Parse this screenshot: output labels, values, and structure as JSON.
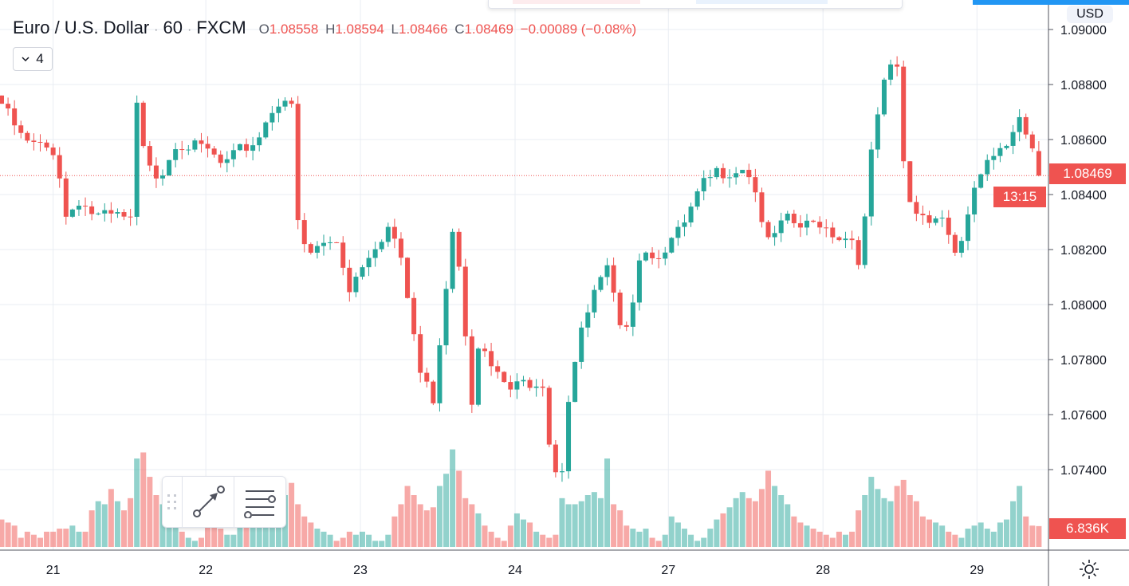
{
  "header": {
    "symbol": "Euro / U.S. Dollar",
    "interval": "60",
    "exchange": "FXCM",
    "separator": "·",
    "o_label": "O",
    "o": "1.08558",
    "h_label": "H",
    "h": "1.08594",
    "l_label": "L",
    "l": "1.08466",
    "c_label": "C",
    "c": "1.08469",
    "change": "−0.00089 (−0.08%)",
    "collapse_count": "4"
  },
  "price_axis": {
    "currency": "USD",
    "last_price": "1.08469",
    "countdown": "13:15",
    "volume_last": "6.836K"
  },
  "colors": {
    "up": "#26a69a",
    "down": "#ef5350",
    "grid": "#e9edf3"
  },
  "chart_data": {
    "type": "candlestick",
    "title": "Euro / U.S. Dollar · 60 · FXCM",
    "ylim": [
      1.0725,
      1.0905
    ],
    "y_ticks": [
      "1.07400",
      "1.07600",
      "1.07800",
      "1.08000",
      "1.08200",
      "1.08400",
      "1.08600",
      "1.08800",
      "1.09000"
    ],
    "x_ticks": [
      {
        "label": "21",
        "bar": 8
      },
      {
        "label": "22",
        "bar": 31.7
      },
      {
        "label": "23",
        "bar": 55.7
      },
      {
        "label": "24",
        "bar": 79.7
      },
      {
        "label": "27",
        "bar": 103.5
      },
      {
        "label": "28",
        "bar": 127.5
      },
      {
        "label": "29",
        "bar": 151.4
      }
    ],
    "bar_count": 162,
    "close_waypoints": [
      [
        0,
        1.0873
      ],
      [
        3.5,
        1.0859
      ],
      [
        8,
        1.0856
      ],
      [
        9,
        1.0847
      ],
      [
        10,
        1.0832
      ],
      [
        12,
        1.0838
      ],
      [
        14.6,
        1.0832
      ],
      [
        18.3,
        1.0832
      ],
      [
        20,
        1.083
      ],
      [
        21,
        1.0872
      ],
      [
        22,
        1.0856
      ],
      [
        24.5,
        1.0846
      ],
      [
        27,
        1.0859
      ],
      [
        32,
        1.0856
      ],
      [
        34.4,
        1.085
      ],
      [
        37,
        1.0856
      ],
      [
        39.4,
        1.0859
      ],
      [
        42,
        1.0871
      ],
      [
        43.7,
        1.0876
      ],
      [
        45,
        1.0871
      ],
      [
        46,
        1.083
      ],
      [
        47.4,
        1.0817
      ],
      [
        49,
        1.0821
      ],
      [
        52,
        1.0823
      ],
      [
        54,
        1.0806
      ],
      [
        56.7,
        1.0818
      ],
      [
        60.4,
        1.0829
      ],
      [
        62,
        1.0815
      ],
      [
        63.5,
        1.0796
      ],
      [
        65,
        1.0775
      ],
      [
        67,
        1.0766
      ],
      [
        68.4,
        1.0795
      ],
      [
        70,
        1.0828
      ],
      [
        71,
        1.0815
      ],
      [
        73,
        1.0766
      ],
      [
        74,
        1.0786
      ],
      [
        76.5,
        1.0775
      ],
      [
        79,
        1.0769
      ],
      [
        81.4,
        1.0772
      ],
      [
        84,
        1.0772
      ],
      [
        85.5,
        1.074
      ],
      [
        87,
        1.0741
      ],
      [
        88,
        1.0766
      ],
      [
        89.5,
        1.0786
      ],
      [
        92,
        1.0804
      ],
      [
        94.4,
        1.0814
      ],
      [
        95.7,
        1.0789
      ],
      [
        97.5,
        1.0796
      ],
      [
        99.4,
        1.0823
      ],
      [
        101,
        1.0817
      ],
      [
        104,
        1.0823
      ],
      [
        106,
        1.0829
      ],
      [
        108.7,
        1.0843
      ],
      [
        111,
        1.0848
      ],
      [
        114,
        1.0849
      ],
      [
        115.5,
        1.0851
      ],
      [
        117,
        1.0841
      ],
      [
        119,
        1.0822
      ],
      [
        121.7,
        1.0831
      ],
      [
        124,
        1.0828
      ],
      [
        127,
        1.083
      ],
      [
        129.7,
        1.0825
      ],
      [
        132,
        1.0824
      ],
      [
        133.4,
        1.0814
      ],
      [
        134.7,
        1.085
      ],
      [
        136.5,
        1.0876
      ],
      [
        137.7,
        1.0885
      ],
      [
        139,
        1.0886
      ],
      [
        140.2,
        1.0844
      ],
      [
        141.5,
        1.0834
      ],
      [
        144,
        1.0832
      ],
      [
        146.4,
        1.0832
      ],
      [
        147.6,
        1.0819
      ],
      [
        149.5,
        1.0823
      ],
      [
        150.7,
        1.0841
      ],
      [
        152.6,
        1.085
      ],
      [
        155.7,
        1.0856
      ],
      [
        158,
        1.087
      ],
      [
        160,
        1.0857
      ],
      [
        161,
        1.08469
      ]
    ],
    "last_bar": {
      "open": 1.08558,
      "high": 1.08594,
      "low": 1.08466,
      "close": 1.08469
    },
    "volume_k": [
      9,
      8,
      7,
      3,
      5,
      4,
      3,
      5,
      5,
      6,
      6,
      7,
      5,
      5,
      12,
      15,
      14,
      19,
      15,
      12,
      16,
      29,
      31,
      23,
      17,
      14,
      10,
      7,
      5,
      3,
      2,
      3,
      7,
      7,
      6,
      4,
      4,
      8,
      8,
      12,
      14,
      16,
      20,
      16,
      17,
      21,
      14,
      10,
      8,
      6,
      5,
      4,
      2,
      3,
      5,
      4,
      5,
      4,
      2,
      2,
      4,
      10,
      14,
      20,
      17,
      14,
      12,
      13,
      20,
      24,
      32,
      25,
      16,
      14,
      11,
      7,
      5,
      3,
      2,
      7,
      11,
      9,
      8,
      5,
      4,
      3,
      4,
      16,
      14,
      14,
      15,
      17,
      18,
      16,
      29,
      14,
      12,
      7,
      6,
      5,
      6,
      3,
      2,
      4,
      10,
      8,
      6,
      4,
      2,
      3,
      6,
      9,
      11,
      13,
      16,
      18,
      16,
      15,
      19,
      25,
      20,
      17,
      14,
      10,
      8,
      7,
      6,
      5,
      4,
      3,
      5,
      4,
      5,
      12,
      17,
      23,
      19,
      16,
      15,
      20,
      22,
      17,
      15,
      10,
      9,
      8,
      7,
      5,
      4,
      3,
      6,
      7,
      8,
      6,
      5,
      8,
      9,
      15,
      20,
      10,
      7,
      6.836
    ],
    "volume_max_k": 34
  }
}
